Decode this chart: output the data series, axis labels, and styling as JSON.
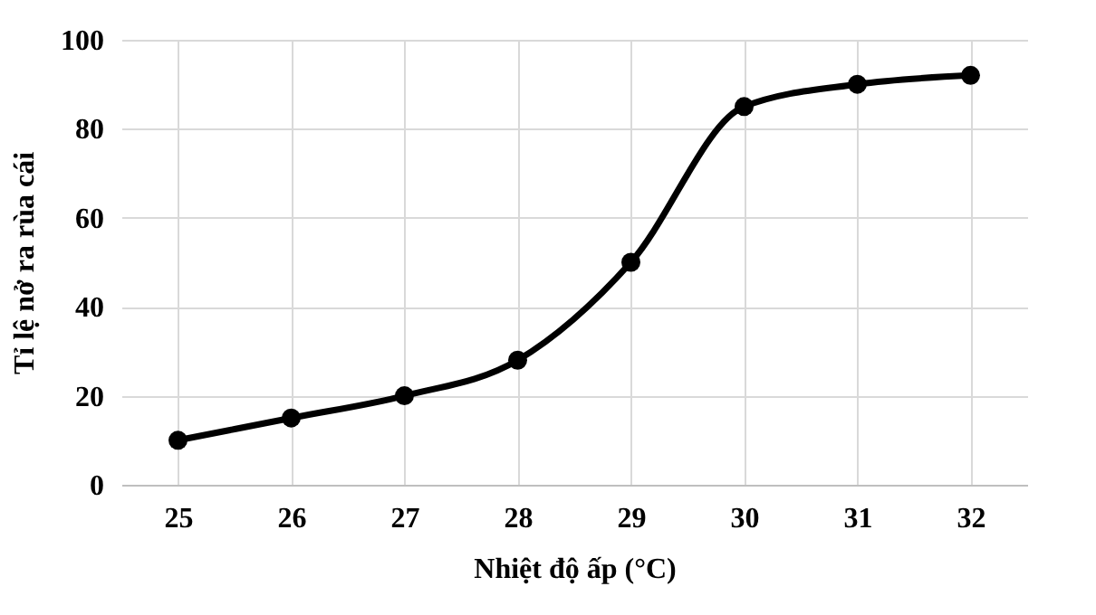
{
  "chart_data": {
    "type": "line",
    "xlabel": "Nhiệt độ ấp (°C)",
    "ylabel": "Tỉ lệ nở ra rùa cái",
    "categories": [
      "25",
      "26",
      "27",
      "28",
      "29",
      "30",
      "31",
      "32"
    ],
    "series": [
      {
        "color": "#000000",
        "values": [
          10,
          15,
          20,
          28,
          50,
          85,
          90,
          92
        ]
      }
    ],
    "ylim": [
      0,
      100
    ],
    "yticks": [
      0,
      20,
      40,
      60,
      80,
      100
    ],
    "grid": true,
    "marker": "circle",
    "line_style": "solid"
  }
}
